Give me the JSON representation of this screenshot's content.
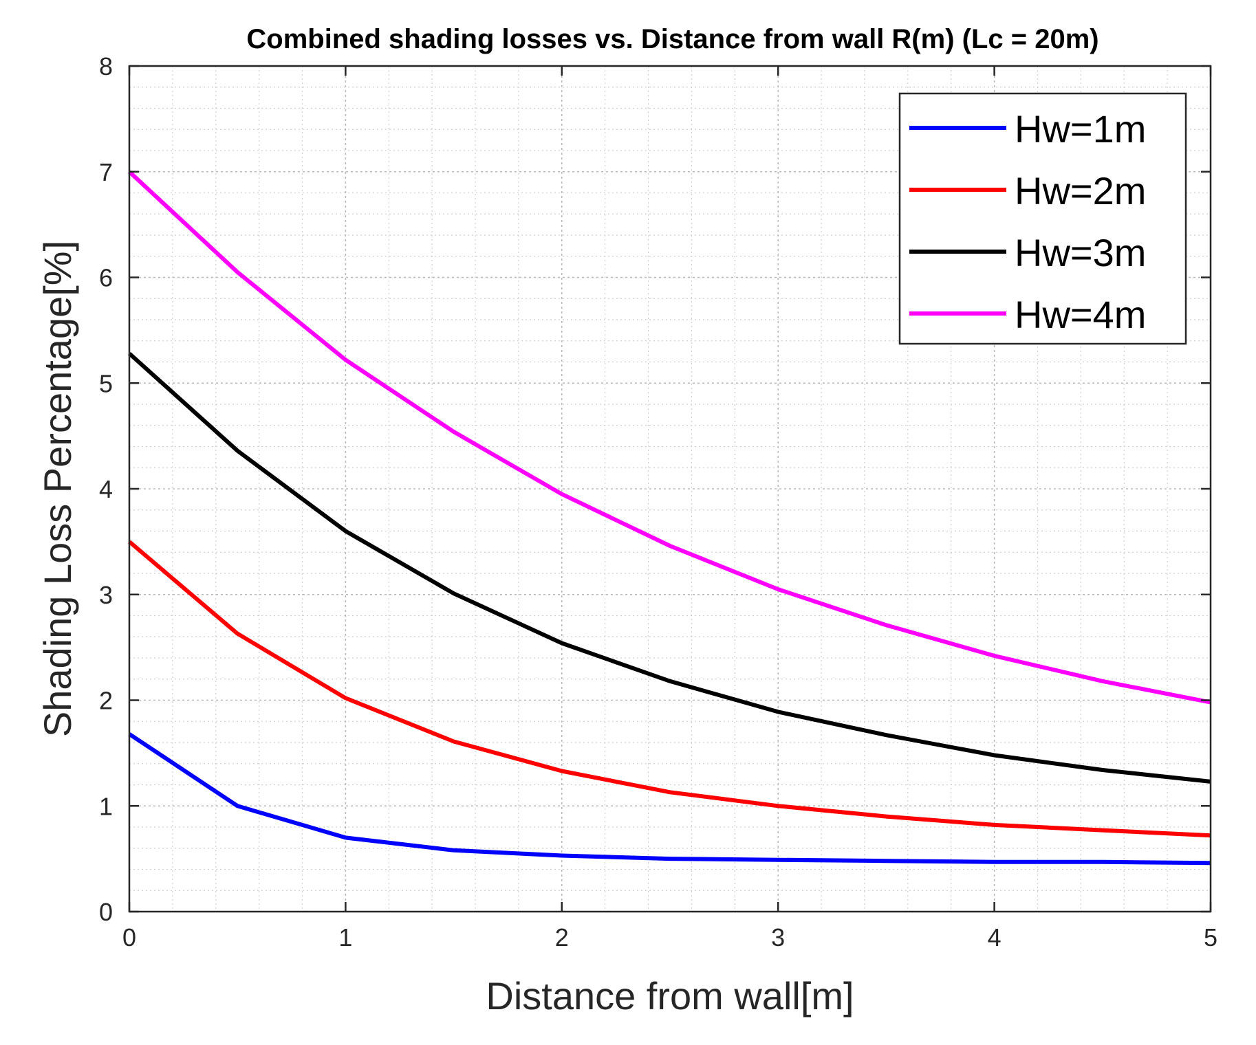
{
  "chart_data": {
    "type": "line",
    "title": "Combined shading losses vs. Distance from wall R(m) (Lc = 20m)",
    "xlabel": "Distance from wall[m]",
    "ylabel": "Shading Loss Percentage[%]",
    "xlim": [
      0,
      5
    ],
    "ylim": [
      0,
      8
    ],
    "xticks": [
      0,
      1,
      2,
      3,
      4,
      5
    ],
    "yticks": [
      0,
      1,
      2,
      3,
      4,
      5,
      6,
      7,
      8
    ],
    "grid": true,
    "minor_grid": true,
    "legend_position": "top-right",
    "x": [
      0,
      0.5,
      1,
      1.5,
      2,
      2.5,
      3,
      3.5,
      4,
      4.5,
      5
    ],
    "series": [
      {
        "name": "Hw=1m",
        "color": "#0000ff",
        "values": [
          1.68,
          1.0,
          0.7,
          0.58,
          0.53,
          0.5,
          0.49,
          0.48,
          0.47,
          0.47,
          0.46
        ]
      },
      {
        "name": "Hw=2m",
        "color": "#ff0000",
        "values": [
          3.5,
          2.63,
          2.02,
          1.61,
          1.33,
          1.13,
          1.0,
          0.9,
          0.82,
          0.77,
          0.72
        ]
      },
      {
        "name": "Hw=3m",
        "color": "#000000",
        "values": [
          5.28,
          4.36,
          3.6,
          3.01,
          2.54,
          2.18,
          1.89,
          1.67,
          1.48,
          1.34,
          1.23
        ]
      },
      {
        "name": "Hw=4m",
        "color": "#ff00ff",
        "values": [
          7.0,
          6.05,
          5.22,
          4.54,
          3.95,
          3.46,
          3.05,
          2.71,
          2.42,
          2.18,
          1.98
        ]
      }
    ]
  }
}
